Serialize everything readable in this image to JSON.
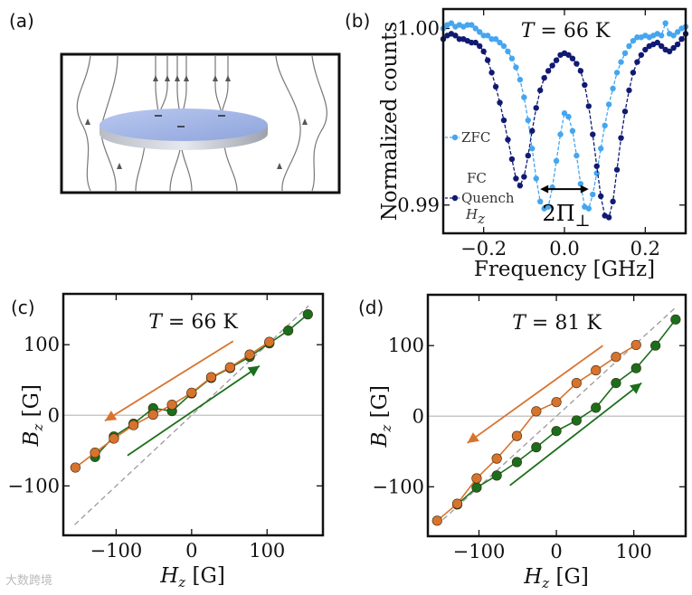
{
  "panels": {
    "a": "(a)",
    "b": "(b)",
    "c": "(c)",
    "d": "(d)"
  },
  "watermark": "大数跨境",
  "colors": {
    "zfc": "#45a6f0",
    "fc": "#101a72",
    "up": "#1b6e1b",
    "down": "#d8732d",
    "diag": "#9a9a9a",
    "zero": "#c8c8c8"
  },
  "chart_data": [
    {
      "panel": "b",
      "type": "line",
      "title": "T = 66 K",
      "title_var": "T",
      "title_rest": " = 66 K",
      "xlabel": "Frequency [GHz]",
      "ylabel": "Normalized counts",
      "xlim": [
        -0.3,
        0.3
      ],
      "ylim": [
        0.9884,
        1.0011
      ],
      "xticks": [
        -0.2,
        0.0,
        0.2
      ],
      "xticklabels": [
        "−0.2",
        "0.0",
        "0.2"
      ],
      "yticks": [
        0.99,
        1.0
      ],
      "yticklabels": [
        "0.99",
        "1.00"
      ],
      "annotation": {
        "label": "2Π",
        "sub": "⊥",
        "x_from": -0.06,
        "x_to": 0.06,
        "y": 0.9909
      },
      "legend": {
        "placement": "left",
        "entries": [
          "ZFC",
          "FC",
          "Quench",
          "H"
        ],
        "entry_sub": "z"
      },
      "series": [
        {
          "name": "ZFC",
          "color_key": "zfc",
          "x": [
            -0.3,
            -0.29,
            -0.28,
            -0.27,
            -0.26,
            -0.25,
            -0.24,
            -0.23,
            -0.22,
            -0.21,
            -0.2,
            -0.19,
            -0.18,
            -0.17,
            -0.16,
            -0.15,
            -0.14,
            -0.13,
            -0.12,
            -0.11,
            -0.1,
            -0.09,
            -0.08,
            -0.07,
            -0.06,
            -0.05,
            -0.04,
            -0.03,
            -0.02,
            -0.01,
            0.0,
            0.01,
            0.02,
            0.03,
            0.04,
            0.05,
            0.06,
            0.07,
            0.08,
            0.09,
            0.1,
            0.11,
            0.12,
            0.13,
            0.14,
            0.15,
            0.16,
            0.17,
            0.18,
            0.19,
            0.2,
            0.21,
            0.22,
            0.23,
            0.24,
            0.25,
            0.26,
            0.27,
            0.28,
            0.29,
            0.3
          ],
          "y": [
            1.0,
            1.0002,
            1.0003,
            1.0001,
            1.0002,
            1.0001,
            1.0002,
            1.0002,
            1.0,
            0.9998,
            0.9996,
            0.9996,
            0.9994,
            0.9994,
            0.9992,
            0.999,
            0.9987,
            0.9983,
            0.9978,
            0.9971,
            0.9961,
            0.9948,
            0.9932,
            0.9915,
            0.9902,
            0.9898,
            0.9899,
            0.991,
            0.9925,
            0.994,
            0.9952,
            0.995,
            0.9942,
            0.9928,
            0.9912,
            0.9899,
            0.9898,
            0.9906,
            0.9918,
            0.9932,
            0.9945,
            0.9957,
            0.9966,
            0.9975,
            0.9981,
            0.9986,
            0.999,
            0.9993,
            0.9995,
            0.9995,
            0.9996,
            0.9995,
            0.9996,
            0.9997,
            0.9996,
            1.0003,
            0.9997,
            0.9996,
            0.9998,
            1.0,
            1.0001
          ]
        },
        {
          "name": "FC Quench Hz",
          "color_key": "fc",
          "x": [
            -0.3,
            -0.29,
            -0.28,
            -0.27,
            -0.26,
            -0.25,
            -0.24,
            -0.23,
            -0.22,
            -0.21,
            -0.2,
            -0.19,
            -0.18,
            -0.17,
            -0.16,
            -0.15,
            -0.14,
            -0.13,
            -0.12,
            -0.11,
            -0.1,
            -0.09,
            -0.08,
            -0.07,
            -0.06,
            -0.05,
            -0.04,
            -0.03,
            -0.02,
            -0.01,
            0.0,
            0.01,
            0.02,
            0.03,
            0.04,
            0.05,
            0.06,
            0.07,
            0.08,
            0.09,
            0.1,
            0.11,
            0.12,
            0.13,
            0.14,
            0.15,
            0.16,
            0.17,
            0.18,
            0.19,
            0.2,
            0.21,
            0.22,
            0.23,
            0.24,
            0.25,
            0.26,
            0.27,
            0.28,
            0.29,
            0.3
          ],
          "y": [
            0.9994,
            0.9996,
            0.9997,
            0.9996,
            0.9994,
            0.9994,
            0.9993,
            0.9992,
            0.9992,
            0.999,
            0.9987,
            0.9982,
            0.9975,
            0.9967,
            0.9958,
            0.9948,
            0.9937,
            0.9926,
            0.9915,
            0.9911,
            0.9916,
            0.9928,
            0.9942,
            0.9955,
            0.9965,
            0.9972,
            0.9976,
            0.9979,
            0.9982,
            0.9985,
            0.9986,
            0.9985,
            0.9983,
            0.998,
            0.9976,
            0.9968,
            0.9956,
            0.994,
            0.9922,
            0.9905,
            0.9894,
            0.9893,
            0.9902,
            0.992,
            0.9938,
            0.9953,
            0.9965,
            0.9975,
            0.9981,
            0.9985,
            0.9988,
            0.999,
            0.9991,
            0.9992,
            0.999,
            0.9988,
            0.9987,
            0.9989,
            0.9991,
            0.9994,
            0.9997
          ]
        }
      ]
    },
    {
      "panel": "c",
      "type": "line",
      "title_var": "T",
      "title_rest": " = 66 K",
      "xlabel_var": "H",
      "xlabel_sub": "z",
      "xlabel_unit": " [G]",
      "ylabel_var": "B",
      "ylabel_sub": "z",
      "ylabel_unit": " [G]",
      "xlim": [
        -170,
        174
      ],
      "ylim": [
        -170,
        172
      ],
      "xticks": [
        -100,
        0,
        100
      ],
      "xticklabels": [
        "−100",
        "0",
        "100"
      ],
      "yticks": [
        -100,
        0,
        100
      ],
      "yticklabels": [
        "−100",
        "0",
        "100"
      ],
      "diagonal": [
        -155,
        155
      ],
      "series": [
        {
          "name": "increasing",
          "color_key": "up",
          "x": [
            -128,
            -103,
            -77,
            -51,
            -26,
            0,
            26,
            51,
            77,
            103,
            128,
            154
          ],
          "y": [
            -59,
            -30,
            -12,
            10,
            6,
            31,
            53,
            67,
            83,
            102,
            120,
            143
          ]
        },
        {
          "name": "decreasing",
          "color_key": "down",
          "x": [
            -154,
            -128,
            -103,
            -77,
            -51,
            -26,
            0,
            26,
            51,
            77,
            103
          ],
          "y": [
            -74,
            -53,
            -33,
            -14,
            1,
            15,
            32,
            54,
            68,
            86,
            104
          ]
        }
      ],
      "arrows": [
        {
          "color_key": "down",
          "from": [
            55,
            105
          ],
          "to": [
            -115,
            -8
          ]
        },
        {
          "color_key": "up",
          "from": [
            -85,
            -57
          ],
          "to": [
            90,
            70
          ]
        }
      ]
    },
    {
      "panel": "d",
      "type": "line",
      "title_var": "T",
      "title_rest": " = 81 K",
      "xlabel_var": "H",
      "xlabel_sub": "z",
      "xlabel_unit": " [G]",
      "ylabel_var": "B",
      "ylabel_sub": "z",
      "ylabel_unit": " [G]",
      "xlim": [
        -166,
        167
      ],
      "ylim": [
        -170,
        172
      ],
      "xticks": [
        -100,
        0,
        100
      ],
      "xticklabels": [
        "−100",
        "0",
        "100"
      ],
      "yticks": [
        -100,
        0,
        100
      ],
      "yticklabels": [
        "−100",
        "0",
        "100"
      ],
      "diagonal": [
        -155,
        155
      ],
      "series": [
        {
          "name": "increasing",
          "color_key": "up",
          "x": [
            -128,
            -103,
            -77,
            -51,
            -26,
            0,
            26,
            51,
            77,
            103,
            128,
            154
          ],
          "y": [
            -125,
            -101,
            -84,
            -65,
            -44,
            -21,
            -6,
            12,
            47,
            68,
            100,
            137
          ]
        },
        {
          "name": "decreasing",
          "color_key": "down",
          "x": [
            -154,
            -128,
            -103,
            -77,
            -51,
            -26,
            0,
            26,
            51,
            77,
            103
          ],
          "y": [
            -148,
            -124,
            -88,
            -60,
            -28,
            7,
            20,
            47,
            65,
            84,
            101
          ]
        }
      ],
      "arrows": [
        {
          "color_key": "down",
          "from": [
            60,
            100
          ],
          "to": [
            -115,
            -38
          ]
        },
        {
          "color_key": "up",
          "from": [
            -60,
            -98
          ],
          "to": [
            110,
            47
          ]
        }
      ]
    }
  ]
}
